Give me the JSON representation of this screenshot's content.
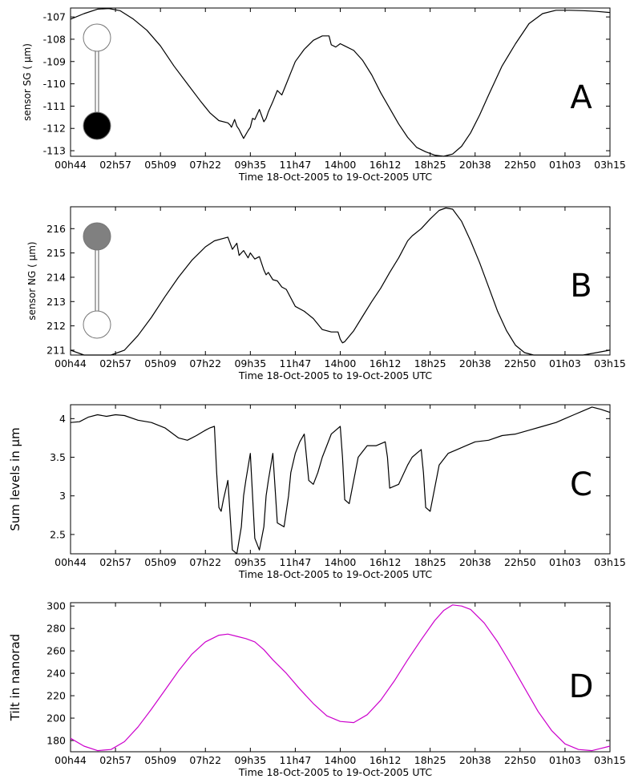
{
  "chart_data": [
    {
      "type": "line",
      "panel_label": "A",
      "ylabel": "sensor SG ( μm)",
      "xlabel": "Time 18-Oct-2005 to 19-Oct-2005 UTC",
      "x_tick_labels": [
        "00h44",
        "02h57",
        "05h09",
        "07h22",
        "09h35",
        "11h47",
        "14h00",
        "16h12",
        "18h25",
        "20h38",
        "22h50",
        "01h03",
        "03h15"
      ],
      "xlim": [
        0,
        12
      ],
      "y_ticks": [
        -107,
        -108,
        -109,
        -110,
        -111,
        -112,
        -113
      ],
      "ylim": [
        -113.25,
        -106.6
      ],
      "line_color": "#000000",
      "pendulum": {
        "top_fill": "#ffffff",
        "bottom_fill": "#000000"
      },
      "series": [
        {
          "x": [
            0.0,
            0.3,
            0.6,
            0.85,
            1.1,
            1.4,
            1.7,
            2.0,
            2.3,
            2.6,
            2.9,
            3.1,
            3.3,
            3.5,
            3.55,
            3.58,
            3.65,
            3.7,
            3.75,
            3.8,
            3.85,
            3.95,
            4.0,
            4.05,
            4.1,
            4.2,
            4.3,
            4.35,
            4.4,
            4.5,
            4.6,
            4.7,
            4.8,
            4.9,
            5.0,
            5.2,
            5.4,
            5.6,
            5.75,
            5.8,
            5.9,
            6.0,
            6.1,
            6.3,
            6.5,
            6.7,
            6.9,
            7.1,
            7.3,
            7.5,
            7.7,
            7.9,
            8.1,
            8.3,
            8.5,
            8.7,
            8.9,
            9.1,
            9.3,
            9.6,
            9.9,
            10.2,
            10.5,
            10.8,
            11.1,
            11.4,
            11.7,
            12.0
          ],
          "y": [
            -107.1,
            -106.85,
            -106.65,
            -106.62,
            -106.72,
            -107.1,
            -107.6,
            -108.3,
            -109.2,
            -110.0,
            -110.8,
            -111.3,
            -111.65,
            -111.75,
            -111.85,
            -111.95,
            -111.6,
            -111.9,
            -112.05,
            -112.25,
            -112.45,
            -112.1,
            -111.95,
            -111.55,
            -111.6,
            -111.15,
            -111.7,
            -111.55,
            -111.25,
            -110.8,
            -110.3,
            -110.5,
            -110.0,
            -109.5,
            -109.0,
            -108.45,
            -108.05,
            -107.85,
            -107.85,
            -108.25,
            -108.35,
            -108.2,
            -108.3,
            -108.5,
            -108.95,
            -109.6,
            -110.4,
            -111.1,
            -111.8,
            -112.4,
            -112.85,
            -113.05,
            -113.2,
            -113.25,
            -113.15,
            -112.8,
            -112.2,
            -111.4,
            -110.5,
            -109.2,
            -108.2,
            -107.3,
            -106.85,
            -106.7,
            -106.7,
            -106.72,
            -106.75,
            -106.8
          ]
        }
      ]
    },
    {
      "type": "line",
      "panel_label": "B",
      "ylabel": "sensor NG ( μm)",
      "xlabel": "Time 18-Oct-2005 to 19-Oct-2005 UTC",
      "x_tick_labels": [
        "00h44",
        "02h57",
        "05h09",
        "07h22",
        "09h35",
        "11h47",
        "14h00",
        "16h12",
        "18h25",
        "20h38",
        "22h50",
        "01h03",
        "03h15"
      ],
      "xlim": [
        0,
        12
      ],
      "y_ticks": [
        211,
        212,
        213,
        214,
        215,
        216
      ],
      "ylim": [
        210.8,
        216.9
      ],
      "line_color": "#000000",
      "pendulum": {
        "top_fill": "#808080",
        "bottom_fill": "#ffffff"
      },
      "series": [
        {
          "x": [
            0.0,
            0.3,
            0.6,
            0.9,
            1.2,
            1.5,
            1.8,
            2.1,
            2.4,
            2.7,
            3.0,
            3.2,
            3.4,
            3.5,
            3.6,
            3.7,
            3.75,
            3.85,
            3.95,
            4.0,
            4.1,
            4.2,
            4.3,
            4.35,
            4.4,
            4.5,
            4.6,
            4.7,
            4.8,
            5.0,
            5.2,
            5.4,
            5.6,
            5.8,
            5.95,
            6.0,
            6.05,
            6.1,
            6.3,
            6.5,
            6.7,
            6.9,
            7.1,
            7.3,
            7.5,
            7.6,
            7.8,
            8.0,
            8.2,
            8.35,
            8.5,
            8.7,
            8.9,
            9.1,
            9.3,
            9.5,
            9.7,
            9.9,
            10.1,
            10.3,
            10.5,
            10.8,
            11.1,
            11.4,
            11.7,
            12.0
          ],
          "y": [
            211.0,
            210.75,
            210.6,
            210.7,
            211.0,
            211.6,
            212.35,
            213.2,
            214.0,
            214.7,
            215.25,
            215.5,
            215.6,
            215.65,
            215.15,
            215.4,
            214.9,
            215.1,
            214.8,
            215.0,
            214.75,
            214.85,
            214.3,
            214.1,
            214.2,
            213.9,
            213.85,
            213.6,
            213.5,
            212.8,
            212.6,
            212.3,
            211.85,
            211.75,
            211.75,
            211.45,
            211.3,
            211.35,
            211.8,
            212.4,
            213.0,
            213.55,
            214.2,
            214.8,
            215.5,
            215.7,
            216.0,
            216.4,
            216.75,
            216.85,
            216.8,
            216.3,
            215.5,
            214.6,
            213.6,
            212.6,
            211.8,
            211.2,
            210.9,
            210.75,
            210.7,
            210.65,
            210.7,
            210.8,
            210.9,
            211.0
          ]
        }
      ]
    },
    {
      "type": "line",
      "panel_label": "C",
      "ylabel": "Sum levels in μm",
      "xlabel": "Time 18-Oct-2005 to 19-Oct-2005 UTC",
      "x_tick_labels": [
        "00h44",
        "02h57",
        "05h09",
        "07h22",
        "09h35",
        "11h47",
        "14h00",
        "16h12",
        "18h25",
        "20h38",
        "22h50",
        "01h03",
        "03h15"
      ],
      "xlim": [
        0,
        12
      ],
      "y_ticks": [
        2.5,
        3,
        3.5,
        4
      ],
      "ylim": [
        2.25,
        4.18
      ],
      "line_color": "#000000",
      "series": [
        {
          "x": [
            0.0,
            0.2,
            0.4,
            0.6,
            0.8,
            1.0,
            1.2,
            1.5,
            1.8,
            2.1,
            2.4,
            2.6,
            2.8,
            3.0,
            3.1,
            3.2,
            3.25,
            3.3,
            3.35,
            3.4,
            3.5,
            3.6,
            3.7,
            3.8,
            3.85,
            3.9,
            4.0,
            4.1,
            4.2,
            4.3,
            4.35,
            4.4,
            4.5,
            4.55,
            4.6,
            4.75,
            4.85,
            4.9,
            5.0,
            5.1,
            5.2,
            5.3,
            5.4,
            5.5,
            5.55,
            5.6,
            5.7,
            5.8,
            5.9,
            6.0,
            6.05,
            6.1,
            6.2,
            6.3,
            6.4,
            6.6,
            6.8,
            7.0,
            7.05,
            7.1,
            7.3,
            7.5,
            7.6,
            7.7,
            7.8,
            7.85,
            7.9,
            8.0,
            8.2,
            8.4,
            8.6,
            8.8,
            9.0,
            9.3,
            9.6,
            9.9,
            10.2,
            10.5,
            10.8,
            11.0,
            11.2,
            11.4,
            11.6,
            11.8,
            12.0
          ],
          "y": [
            3.95,
            3.96,
            4.02,
            4.05,
            4.03,
            4.05,
            4.04,
            3.98,
            3.95,
            3.88,
            3.75,
            3.72,
            3.78,
            3.85,
            3.88,
            3.9,
            3.3,
            2.85,
            2.8,
            2.95,
            3.2,
            2.3,
            2.25,
            2.6,
            3.0,
            3.2,
            3.55,
            2.45,
            2.3,
            2.6,
            3.0,
            3.2,
            3.55,
            3.1,
            2.65,
            2.6,
            3.0,
            3.3,
            3.55,
            3.7,
            3.8,
            3.2,
            3.15,
            3.3,
            3.4,
            3.5,
            3.65,
            3.8,
            3.85,
            3.9,
            3.5,
            2.95,
            2.9,
            3.2,
            3.5,
            3.65,
            3.65,
            3.7,
            3.5,
            3.1,
            3.15,
            3.4,
            3.5,
            3.55,
            3.6,
            3.3,
            2.85,
            2.8,
            3.4,
            3.55,
            3.6,
            3.65,
            3.7,
            3.72,
            3.78,
            3.8,
            3.85,
            3.9,
            3.95,
            4.0,
            4.05,
            4.1,
            4.15,
            4.12,
            4.08
          ]
        }
      ]
    },
    {
      "type": "line",
      "panel_label": "D",
      "ylabel": "Tilt  in nanorad",
      "xlabel": "Time 18-Oct-2005 to 19-Oct-2005 UTC",
      "x_tick_labels": [
        "00h44",
        "02h57",
        "05h09",
        "07h22",
        "09h35",
        "11h47",
        "14h00",
        "16h12",
        "18h25",
        "20h38",
        "22h50",
        "01h03",
        "03h15"
      ],
      "xlim": [
        0,
        12
      ],
      "y_ticks": [
        180,
        200,
        220,
        240,
        260,
        280,
        300
      ],
      "ylim": [
        170,
        303
      ],
      "line_color": "#cc00cc",
      "series": [
        {
          "x": [
            0.0,
            0.3,
            0.6,
            0.9,
            1.2,
            1.5,
            1.8,
            2.1,
            2.4,
            2.7,
            3.0,
            3.3,
            3.5,
            3.7,
            3.9,
            4.1,
            4.3,
            4.5,
            4.8,
            5.1,
            5.4,
            5.7,
            6.0,
            6.3,
            6.6,
            6.9,
            7.2,
            7.5,
            7.8,
            8.1,
            8.3,
            8.5,
            8.7,
            8.9,
            9.2,
            9.5,
            9.8,
            10.1,
            10.4,
            10.7,
            11.0,
            11.3,
            11.6,
            11.8,
            12.0
          ],
          "y": [
            182,
            175,
            171,
            172,
            179,
            192,
            208,
            225,
            242,
            257,
            268,
            274,
            275,
            273,
            271,
            268,
            261,
            252,
            240,
            226,
            213,
            202,
            197,
            196,
            203,
            216,
            233,
            252,
            270,
            287,
            296,
            301,
            300,
            297,
            285,
            268,
            248,
            227,
            206,
            189,
            177,
            172,
            171,
            173,
            175
          ]
        }
      ]
    }
  ]
}
